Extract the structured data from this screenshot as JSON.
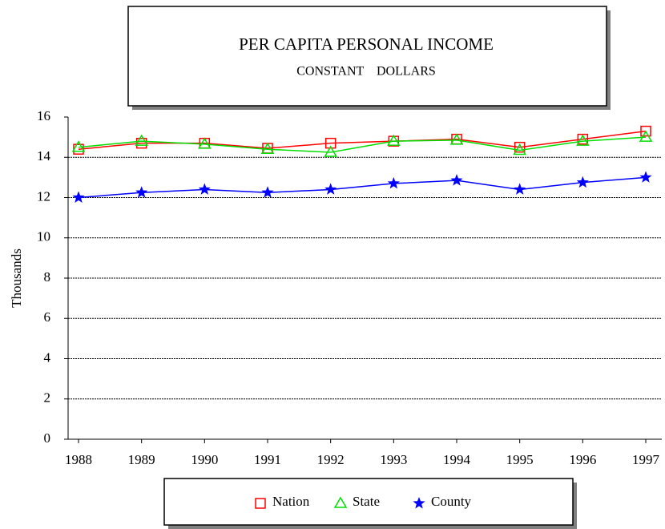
{
  "chart_data": {
    "type": "line",
    "title": "PER CAPITA PERSONAL INCOME",
    "subtitle": "CONSTANT    DOLLARS",
    "y_label": "Thousands",
    "categories": [
      "1988",
      "1989",
      "1990",
      "1991",
      "1992",
      "1993",
      "1994",
      "1995",
      "1996",
      "1997"
    ],
    "series": [
      {
        "name": "Nation",
        "color": "#ff0000",
        "marker": "square",
        "values": [
          14.4,
          14.7,
          14.7,
          14.45,
          14.7,
          14.8,
          14.9,
          14.5,
          14.9,
          15.3
        ]
      },
      {
        "name": "State",
        "color": "#00e000",
        "marker": "triangle",
        "values": [
          14.5,
          14.8,
          14.65,
          14.4,
          14.25,
          14.8,
          14.85,
          14.35,
          14.8,
          15.0
        ]
      },
      {
        "name": "County",
        "color": "#0000ff",
        "marker": "star",
        "values": [
          12.0,
          12.25,
          12.4,
          12.25,
          12.4,
          12.7,
          12.85,
          12.4,
          12.75,
          13.0
        ]
      }
    ],
    "ylim": [
      0,
      16
    ],
    "yticks": [
      0,
      2,
      4,
      6,
      8,
      10,
      12,
      14,
      16
    ],
    "grid": true,
    "legend": "bottom"
  }
}
